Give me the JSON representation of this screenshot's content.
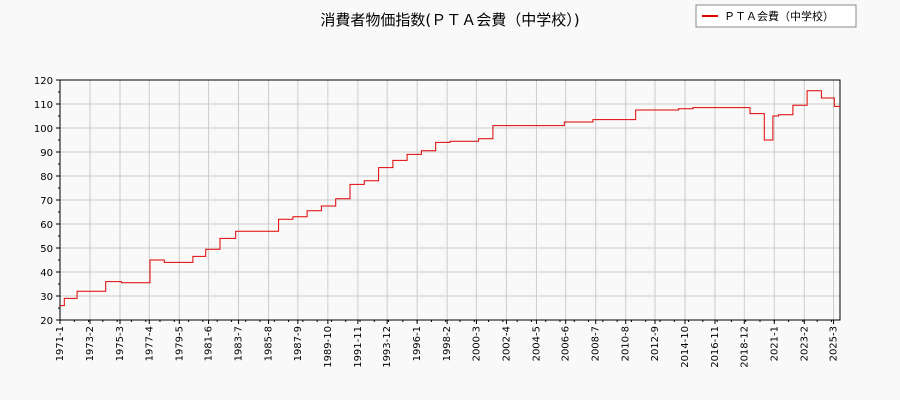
{
  "chart_data": {
    "type": "line",
    "title": "消費者物価指数(ＰＴＡ会費（中学校）)",
    "xlabel": "",
    "ylabel": "",
    "ylim": [
      20,
      120
    ],
    "yticks": [
      20,
      30,
      40,
      50,
      60,
      70,
      80,
      90,
      100,
      110,
      120
    ],
    "xlim": [
      1971.0,
      2025.6
    ],
    "xticks": [
      {
        "label": "1971-1",
        "x": 1971.0
      },
      {
        "label": "1973-2",
        "x": 1973.1
      },
      {
        "label": "1975-3",
        "x": 1975.2
      },
      {
        "label": "1977-4",
        "x": 1977.25
      },
      {
        "label": "1979-5",
        "x": 1979.35
      },
      {
        "label": "1981-6",
        "x": 1981.4
      },
      {
        "label": "1983-7",
        "x": 1983.5
      },
      {
        "label": "1985-8",
        "x": 1985.6
      },
      {
        "label": "1987-9",
        "x": 1987.65
      },
      {
        "label": "1989-10",
        "x": 1989.75
      },
      {
        "label": "1991-11",
        "x": 1991.85
      },
      {
        "label": "1993-12",
        "x": 1993.9
      },
      {
        "label": "1996-1",
        "x": 1996.0
      },
      {
        "label": "1998-2",
        "x": 1998.1
      },
      {
        "label": "2000-3",
        "x": 2000.15
      },
      {
        "label": "2002-4",
        "x": 2002.25
      },
      {
        "label": "2004-5",
        "x": 2004.35
      },
      {
        "label": "2006-6",
        "x": 2006.4
      },
      {
        "label": "2008-7",
        "x": 2008.5
      },
      {
        "label": "2010-8",
        "x": 2010.6
      },
      {
        "label": "2012-9",
        "x": 2012.65
      },
      {
        "label": "2014-10",
        "x": 2014.75
      },
      {
        "label": "2016-11",
        "x": 2016.85
      },
      {
        "label": "2018-12",
        "x": 2018.9
      },
      {
        "label": "2021-1",
        "x": 2021.0
      },
      {
        "label": "2023-2",
        "x": 2023.1
      },
      {
        "label": "2025-3",
        "x": 2025.15
      }
    ],
    "grid": true,
    "legend_position": "top-right",
    "series": [
      {
        "name": "ＰＴＡ会費（中学校）",
        "color": "#e00000",
        "step": true,
        "x": [
          1971.0,
          1971.3,
          1972.2,
          1974.2,
          1975.3,
          1977.3,
          1978.3,
          1980.3,
          1981.2,
          1982.2,
          1983.3,
          1986.3,
          1987.3,
          1988.3,
          1989.3,
          1990.3,
          1991.3,
          1992.3,
          1993.3,
          1994.3,
          1995.3,
          1996.3,
          1997.3,
          1998.3,
          2000.3,
          2001.3,
          2006.3,
          2008.3,
          2011.3,
          2014.3,
          2015.3,
          2019.3,
          2020.3,
          2020.9,
          2021.3,
          2022.3,
          2023.3,
          2024.3,
          2025.2,
          2025.6
        ],
        "y": [
          26,
          29,
          32,
          36,
          35.5,
          45,
          44,
          46.5,
          49.5,
          54,
          57,
          62,
          63,
          65.5,
          67.5,
          70.5,
          76.5,
          78,
          83.5,
          86.5,
          89,
          90.5,
          94,
          94.5,
          95.5,
          101,
          102.5,
          103.5,
          107.5,
          108,
          108.5,
          106,
          95,
          105,
          105.5,
          109.5,
          115.5,
          112.5,
          109,
          109
        ]
      }
    ]
  }
}
